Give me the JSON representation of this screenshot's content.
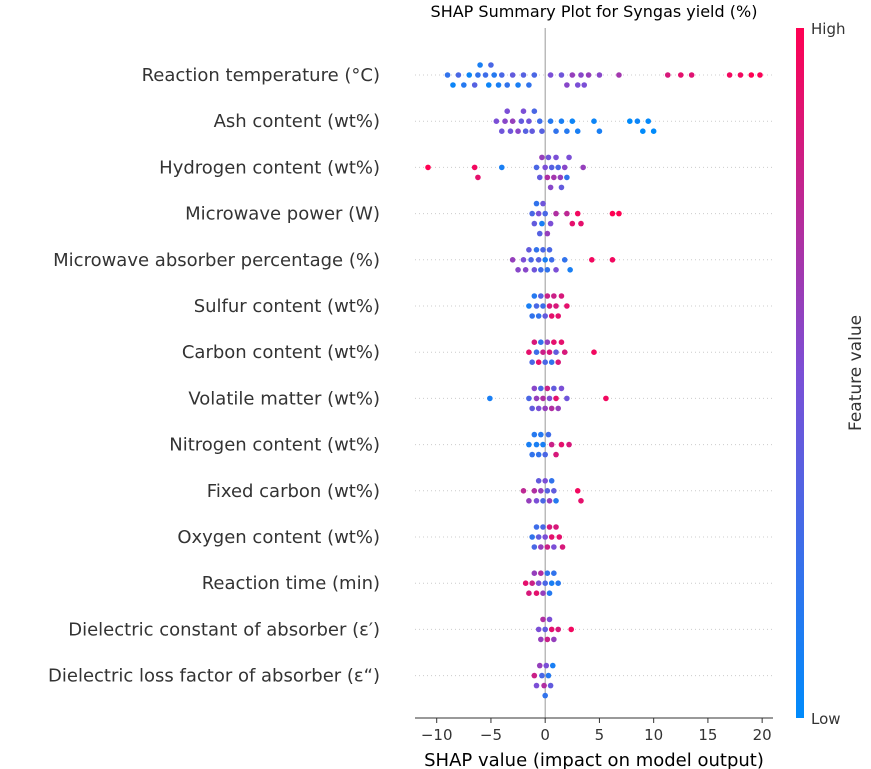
{
  "chart_data": {
    "type": "scatter",
    "subtype": "shap_beeswarm",
    "title": "SHAP Summary Plot for Syngas yield (%)",
    "xlabel": "SHAP value (impact on model output)",
    "xlim": [
      -12,
      21
    ],
    "xticks": [
      -10,
      -5,
      0,
      5,
      10,
      15,
      20
    ],
    "colorbar": {
      "label": "Feature value",
      "high": "High",
      "low": "Low"
    },
    "colors": {
      "low": "#008bfb",
      "high": "#ff0052",
      "axis": "#999999",
      "zero_line": "#999999",
      "row_guide": "#cccccc"
    },
    "features": [
      {
        "name": "Reaction temperature (°C)",
        "points": [
          [
            -9,
            0.2
          ],
          [
            -8.5,
            0.05
          ],
          [
            -8,
            0.3
          ],
          [
            -7.5,
            0.15
          ],
          [
            -7,
            0.05
          ],
          [
            -6.5,
            0.35
          ],
          [
            -6.2,
            0.2
          ],
          [
            -6,
            0.1
          ],
          [
            -5.5,
            0.25
          ],
          [
            -5.2,
            0.05
          ],
          [
            -5,
            0.3
          ],
          [
            -4.7,
            0.15
          ],
          [
            -4.3,
            0.1
          ],
          [
            -4,
            0.3
          ],
          [
            -3.5,
            0.2
          ],
          [
            -3,
            0.4
          ],
          [
            -2.5,
            0.1
          ],
          [
            -2,
            0.35
          ],
          [
            -1.5,
            0.2
          ],
          [
            -1,
            0.3
          ],
          [
            0.5,
            0.5
          ],
          [
            1.5,
            0.45
          ],
          [
            2,
            0.55
          ],
          [
            2.5,
            0.6
          ],
          [
            3,
            0.5
          ],
          [
            3.3,
            0.55
          ],
          [
            3.6,
            0.5
          ],
          [
            4,
            0.6
          ],
          [
            5,
            0.55
          ],
          [
            6.8,
            0.65
          ],
          [
            11.3,
            0.85
          ],
          [
            12.5,
            0.9
          ],
          [
            13.5,
            0.88
          ],
          [
            17,
            0.95
          ],
          [
            18,
            0.95
          ],
          [
            19,
            1.0
          ],
          [
            19.8,
            0.98
          ]
        ]
      },
      {
        "name": "Ash content (wt%)",
        "points": [
          [
            -4.5,
            0.5
          ],
          [
            -4,
            0.45
          ],
          [
            -3.7,
            0.55
          ],
          [
            -3.5,
            0.5
          ],
          [
            -3.2,
            0.45
          ],
          [
            -3,
            0.6
          ],
          [
            -2.5,
            0.55
          ],
          [
            -2.2,
            0.4
          ],
          [
            -2,
            0.5
          ],
          [
            -1.8,
            0.35
          ],
          [
            -1.5,
            0.45
          ],
          [
            -1.2,
            0.4
          ],
          [
            -1,
            0.3
          ],
          [
            -0.5,
            0.25
          ],
          [
            -0.3,
            0.35
          ],
          [
            0.5,
            0.15
          ],
          [
            1,
            0.2
          ],
          [
            1.5,
            0.1
          ],
          [
            2,
            0.15
          ],
          [
            2.5,
            0.05
          ],
          [
            3,
            0.1
          ],
          [
            4.5,
            0.05
          ],
          [
            5,
            0.1
          ],
          [
            7.8,
            0.0
          ],
          [
            8.5,
            0.05
          ],
          [
            9,
            0.0
          ],
          [
            9.5,
            0.02
          ],
          [
            10,
            0.0
          ]
        ]
      },
      {
        "name": "Hydrogen content (wt%)",
        "points": [
          [
            -10.8,
            1.0
          ],
          [
            -6.5,
            0.95
          ],
          [
            -6.2,
            0.9
          ],
          [
            -4,
            0.1
          ],
          [
            -0.8,
            0.3
          ],
          [
            -0.5,
            0.4
          ],
          [
            -0.3,
            0.6
          ],
          [
            0,
            0.5
          ],
          [
            0.2,
            0.7
          ],
          [
            0.3,
            0.45
          ],
          [
            0.5,
            0.55
          ],
          [
            0.6,
            0.35
          ],
          [
            0.8,
            0.65
          ],
          [
            1,
            0.5
          ],
          [
            1.2,
            0.3
          ],
          [
            1.4,
            0.6
          ],
          [
            1.5,
            0.4
          ],
          [
            1.8,
            0.55
          ],
          [
            2,
            0.2
          ],
          [
            2.2,
            0.5
          ],
          [
            3.5,
            0.6
          ]
        ]
      },
      {
        "name": "Microwave power (W)",
        "points": [
          [
            -1.2,
            0.3
          ],
          [
            -1,
            0.4
          ],
          [
            -0.8,
            0.2
          ],
          [
            -0.6,
            0.5
          ],
          [
            -0.5,
            0.35
          ],
          [
            -0.3,
            0.1
          ],
          [
            -0.2,
            0.45
          ],
          [
            0,
            0.3
          ],
          [
            0.2,
            0.6
          ],
          [
            0.5,
            0.5
          ],
          [
            1,
            0.7
          ],
          [
            2,
            0.75
          ],
          [
            2.5,
            0.9
          ],
          [
            3,
            0.95
          ],
          [
            3.3,
            0.9
          ],
          [
            6.2,
            1.0
          ],
          [
            6.8,
            1.0
          ]
        ]
      },
      {
        "name": "Microwave absorber percentage (%)",
        "points": [
          [
            -3,
            0.6
          ],
          [
            -2.5,
            0.55
          ],
          [
            -2,
            0.5
          ],
          [
            -1.8,
            0.55
          ],
          [
            -1.5,
            0.4
          ],
          [
            -1.3,
            0.3
          ],
          [
            -1,
            0.45
          ],
          [
            -0.8,
            0.2
          ],
          [
            -0.6,
            0.35
          ],
          [
            -0.4,
            0.25
          ],
          [
            -0.2,
            0.3
          ],
          [
            0,
            0.1
          ],
          [
            0.2,
            0.2
          ],
          [
            0.4,
            0.3
          ],
          [
            0.6,
            0.25
          ],
          [
            1,
            0.5
          ],
          [
            1.8,
            0.2
          ],
          [
            2.3,
            0.1
          ],
          [
            4.3,
            0.95
          ],
          [
            6.2,
            0.95
          ]
        ]
      },
      {
        "name": "Sulfur content (wt%)",
        "points": [
          [
            -1.5,
            0.1
          ],
          [
            -1.2,
            0.2
          ],
          [
            -1,
            0.15
          ],
          [
            -0.8,
            0.3
          ],
          [
            -0.6,
            0.2
          ],
          [
            -0.4,
            0.35
          ],
          [
            -0.2,
            0.25
          ],
          [
            0,
            0.4
          ],
          [
            0.2,
            0.8
          ],
          [
            0.4,
            0.85
          ],
          [
            0.6,
            0.9
          ],
          [
            0.8,
            0.8
          ],
          [
            1,
            0.85
          ],
          [
            1.2,
            0.9
          ],
          [
            1.5,
            0.85
          ],
          [
            2,
            0.9
          ]
        ]
      },
      {
        "name": "Carbon content (wt%)",
        "points": [
          [
            -1.5,
            0.9
          ],
          [
            -1.2,
            0.3
          ],
          [
            -1,
            0.85
          ],
          [
            -0.8,
            0.25
          ],
          [
            -0.6,
            0.9
          ],
          [
            -0.4,
            0.2
          ],
          [
            -0.2,
            0.8
          ],
          [
            0,
            0.3
          ],
          [
            0.2,
            0.6
          ],
          [
            0.4,
            0.85
          ],
          [
            0.6,
            0.2
          ],
          [
            0.8,
            0.9
          ],
          [
            1,
            0.4
          ],
          [
            1.2,
            0.85
          ],
          [
            1.5,
            0.9
          ],
          [
            1.8,
            0.85
          ],
          [
            4.5,
            0.95
          ]
        ]
      },
      {
        "name": "Volatile matter (wt%)",
        "points": [
          [
            -5.1,
            0.1
          ],
          [
            -1.5,
            0.3
          ],
          [
            -1.2,
            0.4
          ],
          [
            -1,
            0.55
          ],
          [
            -0.8,
            0.6
          ],
          [
            -0.6,
            0.5
          ],
          [
            -0.4,
            0.3
          ],
          [
            -0.2,
            0.7
          ],
          [
            0,
            0.6
          ],
          [
            0.2,
            0.8
          ],
          [
            0.4,
            0.5
          ],
          [
            0.6,
            0.7
          ],
          [
            0.8,
            0.4
          ],
          [
            1,
            0.9
          ],
          [
            1.2,
            0.6
          ],
          [
            1.5,
            0.5
          ],
          [
            2,
            0.45
          ],
          [
            5.6,
            0.95
          ]
        ]
      },
      {
        "name": "Nitrogen content (wt%)",
        "points": [
          [
            -1.5,
            0.1
          ],
          [
            -1.2,
            0.2
          ],
          [
            -1,
            0.15
          ],
          [
            -0.8,
            0.1
          ],
          [
            -0.6,
            0.2
          ],
          [
            -0.4,
            0.15
          ],
          [
            -0.2,
            0.1
          ],
          [
            0,
            0.3
          ],
          [
            0.3,
            0.25
          ],
          [
            0.6,
            0.8
          ],
          [
            1,
            0.85
          ],
          [
            1.5,
            0.9
          ],
          [
            2.2,
            0.85
          ]
        ]
      },
      {
        "name": "Fixed carbon (wt%)",
        "points": [
          [
            -2,
            0.75
          ],
          [
            -1.5,
            0.6
          ],
          [
            -1,
            0.7
          ],
          [
            -0.8,
            0.5
          ],
          [
            -0.6,
            0.4
          ],
          [
            -0.4,
            0.6
          ],
          [
            -0.2,
            0.3
          ],
          [
            0,
            0.5
          ],
          [
            0.2,
            0.35
          ],
          [
            0.4,
            0.6
          ],
          [
            0.6,
            0.2
          ],
          [
            0.8,
            0.4
          ],
          [
            1,
            0.15
          ],
          [
            3,
            0.95
          ],
          [
            3.3,
            0.9
          ]
        ]
      },
      {
        "name": "Oxygen content (wt%)",
        "points": [
          [
            -1.2,
            0.2
          ],
          [
            -1,
            0.3
          ],
          [
            -0.8,
            0.25
          ],
          [
            -0.6,
            0.4
          ],
          [
            -0.4,
            0.6
          ],
          [
            -0.2,
            0.3
          ],
          [
            0,
            0.5
          ],
          [
            0.2,
            0.8
          ],
          [
            0.4,
            0.85
          ],
          [
            0.6,
            0.9
          ],
          [
            0.8,
            0.5
          ],
          [
            1,
            0.85
          ],
          [
            1.3,
            0.9
          ],
          [
            1.6,
            0.85
          ]
        ]
      },
      {
        "name": "Reaction time (min)",
        "points": [
          [
            -1.8,
            0.9
          ],
          [
            -1.5,
            0.85
          ],
          [
            -1.2,
            0.8
          ],
          [
            -1,
            0.6
          ],
          [
            -0.8,
            0.9
          ],
          [
            -0.6,
            0.5
          ],
          [
            -0.4,
            0.7
          ],
          [
            -0.2,
            0.6
          ],
          [
            0,
            0.3
          ],
          [
            0.2,
            0.2
          ],
          [
            0.4,
            0.15
          ],
          [
            0.6,
            0.1
          ],
          [
            0.8,
            0.2
          ],
          [
            1.2,
            0.15
          ]
        ]
      },
      {
        "name": "Dielectric constant of absorber (ε′)",
        "points": [
          [
            -0.6,
            0.5
          ],
          [
            -0.4,
            0.6
          ],
          [
            -0.2,
            0.7
          ],
          [
            0,
            0.4
          ],
          [
            0.2,
            0.8
          ],
          [
            0.4,
            0.5
          ],
          [
            0.6,
            0.9
          ],
          [
            0.8,
            0.6
          ],
          [
            1.2,
            0.85
          ],
          [
            2.4,
            0.95
          ]
        ]
      },
      {
        "name": "Dielectric loss factor of absorber (ε“)",
        "points": [
          [
            -1,
            0.8
          ],
          [
            -0.8,
            0.5
          ],
          [
            -0.5,
            0.6
          ],
          [
            -0.3,
            0.3
          ],
          [
            -0.1,
            0.7
          ],
          [
            0,
            0.2
          ],
          [
            0.1,
            0.5
          ],
          [
            0.3,
            0.15
          ],
          [
            0.5,
            0.4
          ],
          [
            0.7,
            0.1
          ]
        ]
      }
    ]
  }
}
